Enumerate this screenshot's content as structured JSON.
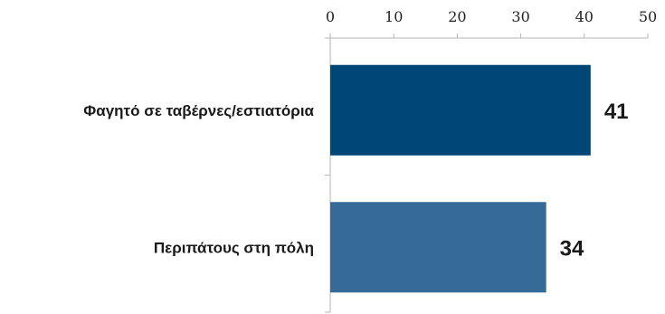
{
  "chart_data": {
    "type": "bar",
    "orientation": "horizontal",
    "x_axis_position": "top",
    "xlim": [
      0,
      50
    ],
    "xticks": [
      0,
      10,
      20,
      30,
      40,
      50
    ],
    "categories": [
      "Φαγητό σε ταβέρνες/εστιατόρια",
      "Περιπάτους στη πόλη"
    ],
    "values": [
      41,
      34
    ],
    "data_labels": [
      "41",
      "34"
    ],
    "colors": [
      "#004677",
      "#376b97"
    ],
    "grid": false
  }
}
